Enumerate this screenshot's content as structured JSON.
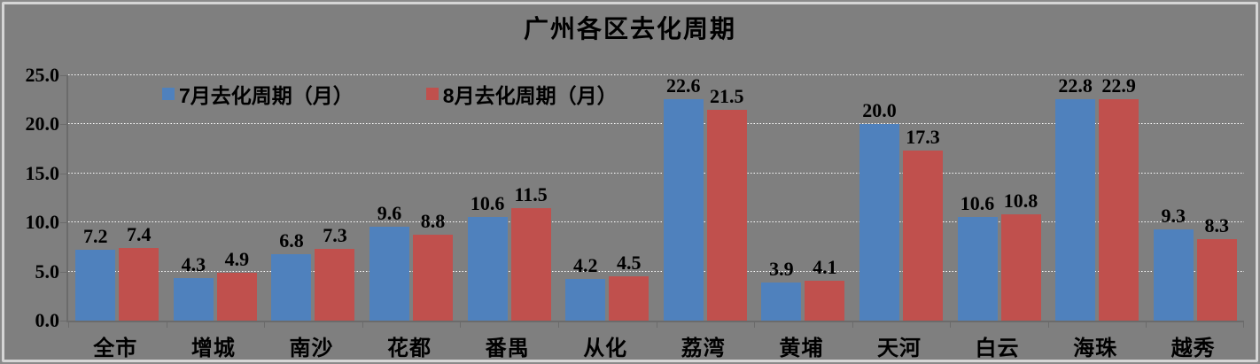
{
  "colors": {
    "background": "#7F7F7F",
    "frame_outer": "#8A8A8A",
    "frame_border": "#D5D5D5",
    "axis": "#6B6B6B",
    "gridline": "#FFFFFF",
    "text": "#000000",
    "series_july_blue": "#4F81BD",
    "series_august_red": "#C0504D"
  },
  "chart_data": {
    "type": "bar",
    "title": "广州各区去化周期",
    "categories": [
      "全市",
      "增城",
      "南沙",
      "花都",
      "番禺",
      "从化",
      "荔湾",
      "黄埔",
      "天河",
      "白云",
      "海珠",
      "越秀"
    ],
    "series": [
      {
        "name": "7月去化周期（月）",
        "color": "#4F81BD",
        "values": [
          7.2,
          4.3,
          6.8,
          9.6,
          10.6,
          4.2,
          22.6,
          3.9,
          20.0,
          10.6,
          22.8,
          9.3
        ]
      },
      {
        "name": "8月去化周期（月）",
        "color": "#C0504D",
        "values": [
          7.4,
          4.9,
          7.3,
          8.8,
          11.5,
          4.5,
          21.5,
          4.1,
          17.3,
          10.8,
          22.9,
          8.3
        ]
      }
    ],
    "xlabel": "",
    "ylabel": "",
    "ylim": [
      0,
      25
    ],
    "yticks": [
      0,
      5,
      10,
      15,
      20,
      25
    ],
    "ytick_labels": [
      "0.0",
      "5.0",
      "10.0",
      "15.0",
      "20.0",
      "25.0"
    ],
    "grid": true,
    "grid_style": "dotted-white-horizontal",
    "legend_position": "inside-top-left",
    "value_labels": "one-decimal-above-bars"
  }
}
